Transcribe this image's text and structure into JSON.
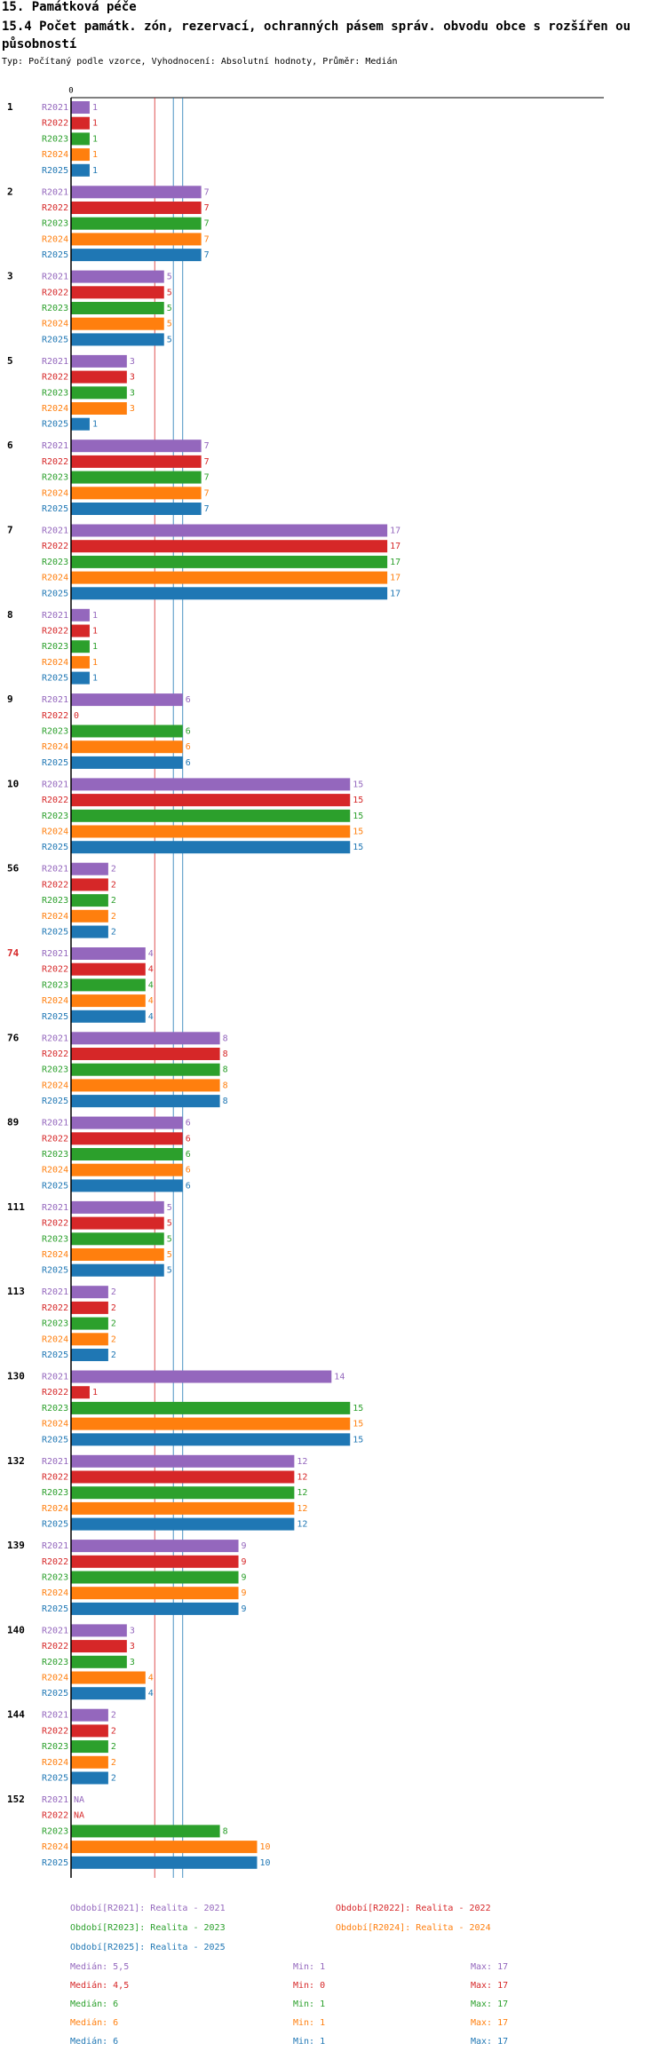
{
  "header": {
    "section": "15. Památková péče",
    "title": "15.4 Počet památk. zón, rezervací, ochranných pásem správ. obvodu obce s rozšířen ou působností",
    "subtitle": "Typ: Počítaný podle vzorce, Vyhodnocení: Absolutní hodnoty, Průměr: Medián"
  },
  "colors": {
    "R2021": "#9467bd",
    "R2022": "#d62728",
    "R2023": "#2ca02c",
    "R2024": "#ff7f0e",
    "R2025": "#1f77b4",
    "median_line": "#d62728",
    "ref_line": "#1f77b4",
    "highlight_group": "#d62728"
  },
  "chart_data": {
    "type": "bar",
    "orientation": "horizontal",
    "axis_zero_label": "0",
    "xlim": [
      0,
      17
    ],
    "series_names": [
      "R2021",
      "R2022",
      "R2023",
      "R2024",
      "R2025"
    ],
    "reference_lines": [
      4.5,
      5.5,
      6
    ],
    "groups": [
      {
        "label": "1",
        "values": [
          1,
          1,
          1,
          1,
          1
        ]
      },
      {
        "label": "2",
        "values": [
          7,
          7,
          7,
          7,
          7
        ]
      },
      {
        "label": "3",
        "values": [
          5,
          5,
          5,
          5,
          5
        ]
      },
      {
        "label": "5",
        "values": [
          3,
          3,
          3,
          3,
          1
        ]
      },
      {
        "label": "6",
        "values": [
          7,
          7,
          7,
          7,
          7
        ]
      },
      {
        "label": "7",
        "values": [
          17,
          17,
          17,
          17,
          17
        ]
      },
      {
        "label": "8",
        "values": [
          1,
          1,
          1,
          1,
          1
        ]
      },
      {
        "label": "9",
        "values": [
          6,
          0,
          6,
          6,
          6
        ]
      },
      {
        "label": "10",
        "values": [
          15,
          15,
          15,
          15,
          15
        ]
      },
      {
        "label": "56",
        "values": [
          2,
          2,
          2,
          2,
          2
        ]
      },
      {
        "label": "74",
        "values": [
          4,
          4,
          4,
          4,
          4
        ],
        "highlight": true
      },
      {
        "label": "76",
        "values": [
          8,
          8,
          8,
          8,
          8
        ]
      },
      {
        "label": "89",
        "values": [
          6,
          6,
          6,
          6,
          6
        ]
      },
      {
        "label": "111",
        "values": [
          5,
          5,
          5,
          5,
          5
        ]
      },
      {
        "label": "113",
        "values": [
          2,
          2,
          2,
          2,
          2
        ]
      },
      {
        "label": "130",
        "values": [
          14,
          1,
          15,
          15,
          15
        ]
      },
      {
        "label": "132",
        "values": [
          12,
          12,
          12,
          12,
          12
        ]
      },
      {
        "label": "139",
        "values": [
          9,
          9,
          9,
          9,
          9
        ]
      },
      {
        "label": "140",
        "values": [
          3,
          3,
          3,
          4,
          4
        ]
      },
      {
        "label": "144",
        "values": [
          2,
          2,
          2,
          2,
          2
        ]
      },
      {
        "label": "152",
        "values": [
          "NA",
          "NA",
          8,
          10,
          10
        ]
      }
    ]
  },
  "legend": {
    "periods": [
      "Období[R2021]: Realita - 2021",
      "Období[R2022]: Realita - 2022",
      "Období[R2023]: Realita - 2023",
      "Období[R2024]: Realita - 2024",
      "Období[R2025]: Realita - 2025"
    ],
    "stats": [
      {
        "median": "Medián: 5,5",
        "min": "Min: 1",
        "max": "Max: 17"
      },
      {
        "median": "Medián: 4,5",
        "min": "Min: 0",
        "max": "Max: 17"
      },
      {
        "median": "Medián: 6",
        "min": "Min: 1",
        "max": "Max: 17"
      },
      {
        "median": "Medián: 6",
        "min": "Min: 1",
        "max": "Max: 17"
      },
      {
        "median": "Medián: 6",
        "min": "Min: 1",
        "max": "Max: 17"
      }
    ]
  }
}
